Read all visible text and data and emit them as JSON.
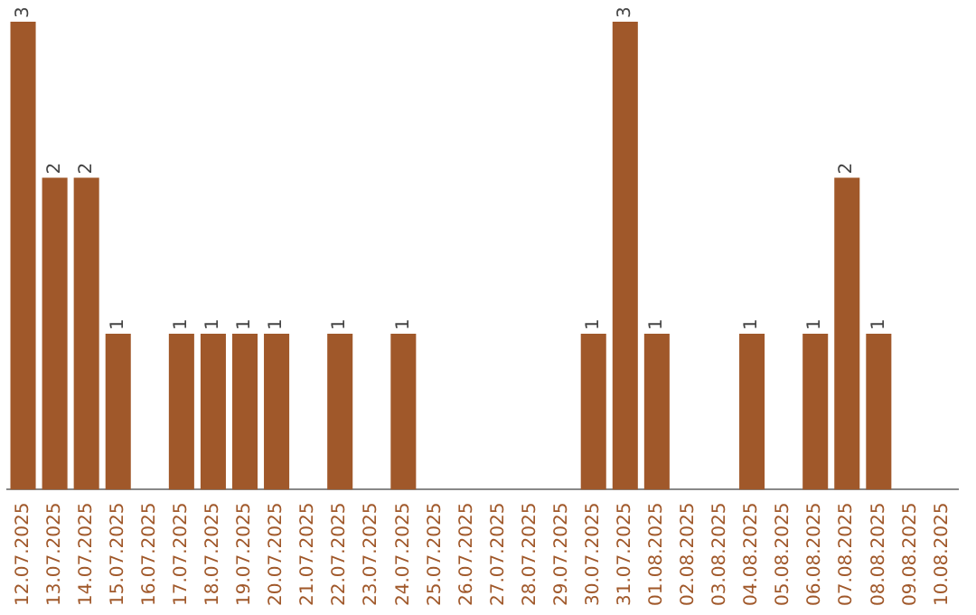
{
  "chart_data": {
    "type": "bar",
    "categories": [
      "12.07.2025",
      "13.07.2025",
      "14.07.2025",
      "15.07.2025",
      "16.07.2025",
      "17.07.2025",
      "18.07.2025",
      "19.07.2025",
      "20.07.2025",
      "21.07.2025",
      "22.07.2025",
      "23.07.2025",
      "24.07.2025",
      "25.07.2025",
      "26.07.2025",
      "27.07.2025",
      "28.07.2025",
      "29.07.2025",
      "30.07.2025",
      "31.07.2025",
      "01.08.2025",
      "02.08.2025",
      "03.08.2025",
      "04.08.2025",
      "05.08.2025",
      "06.08.2025",
      "07.08.2025",
      "08.08.2025",
      "09.08.2025",
      "10.08.2025"
    ],
    "values": [
      3,
      2,
      2,
      1,
      0,
      1,
      1,
      1,
      1,
      0,
      1,
      0,
      1,
      0,
      0,
      0,
      0,
      0,
      1,
      3,
      1,
      0,
      0,
      1,
      0,
      1,
      2,
      1,
      0,
      0
    ],
    "value_labels": [
      "3",
      "2",
      "2",
      "1",
      null,
      "1",
      "1",
      "1",
      "1",
      null,
      "1",
      null,
      "1",
      null,
      null,
      null,
      null,
      null,
      "1",
      "3",
      "1",
      null,
      null,
      "1",
      null,
      "1",
      "2",
      "1",
      null,
      null
    ],
    "color": "#a0582a",
    "grid": false,
    "legend": false
  }
}
